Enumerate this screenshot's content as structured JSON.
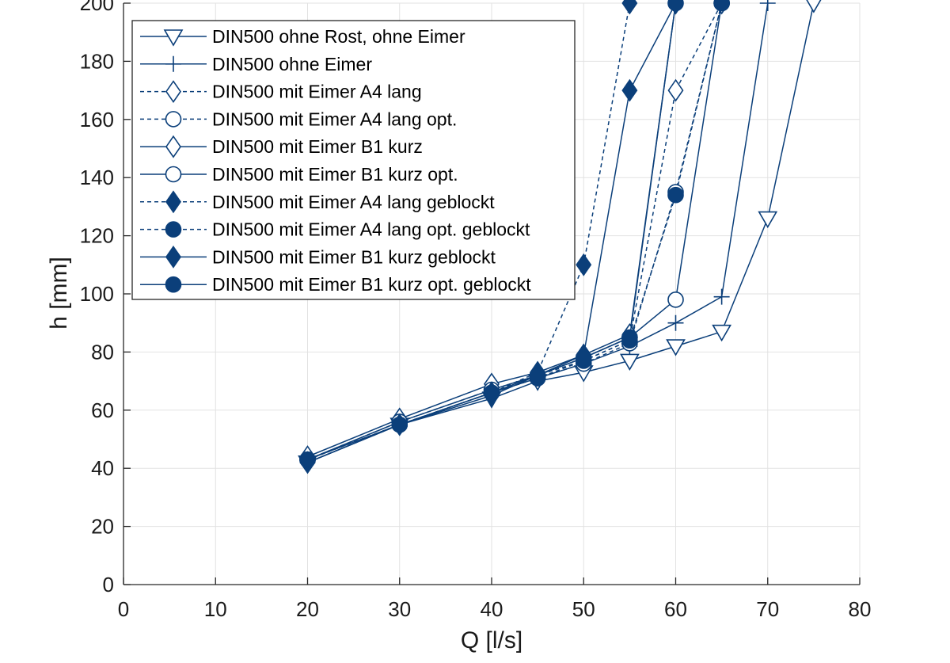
{
  "chart_data": {
    "type": "line",
    "title": "",
    "xlabel": "Q [l/s]",
    "ylabel": "h [mm]",
    "xlim": [
      0,
      80
    ],
    "ylim": [
      0,
      200
    ],
    "xticks": [
      0,
      10,
      20,
      30,
      40,
      50,
      60,
      70,
      80
    ],
    "yticks": [
      0,
      20,
      40,
      60,
      80,
      100,
      120,
      140,
      160,
      180,
      200
    ],
    "grid": true,
    "legend_position": "top-left",
    "color": "#0b3f7a",
    "series": [
      {
        "name": "DIN500 ohne Rost, ohne Eimer",
        "marker": "triangle-down",
        "filled": false,
        "dashed": false,
        "x": [
          20,
          30,
          40,
          45,
          50,
          55,
          60,
          65,
          70,
          75
        ],
        "y": [
          42,
          55,
          64,
          70,
          73,
          77,
          82,
          87,
          126,
          200
        ]
      },
      {
        "name": "DIN500 ohne Eimer",
        "marker": "plus",
        "filled": false,
        "dashed": false,
        "x": [
          20,
          30,
          40,
          45,
          50,
          55,
          60,
          65,
          70
        ],
        "y": [
          42,
          55,
          66,
          71,
          76,
          82,
          90,
          99,
          200
        ]
      },
      {
        "name": "DIN500 mit Eimer A4 lang",
        "marker": "diamond",
        "filled": false,
        "dashed": true,
        "x": [
          20,
          30,
          40,
          45,
          50,
          55,
          60,
          65
        ],
        "y": [
          43,
          56,
          67,
          72,
          77,
          84,
          170,
          200
        ]
      },
      {
        "name": "DIN500 mit Eimer A4 lang opt.",
        "marker": "circle",
        "filled": false,
        "dashed": true,
        "x": [
          20,
          30,
          40,
          45,
          50,
          55,
          60,
          65
        ],
        "y": [
          43,
          55,
          66,
          71,
          76,
          83,
          135,
          200
        ]
      },
      {
        "name": "DIN500 mit Eimer B1 kurz",
        "marker": "diamond",
        "filled": false,
        "dashed": false,
        "x": [
          20,
          30,
          40,
          45,
          50,
          55,
          60
        ],
        "y": [
          44,
          57,
          69,
          73,
          79,
          86,
          200
        ]
      },
      {
        "name": "DIN500 mit Eimer B1 kurz opt.",
        "marker": "circle",
        "filled": false,
        "dashed": false,
        "x": [
          20,
          30,
          40,
          45,
          50,
          55,
          60,
          65
        ],
        "y": [
          43,
          56,
          67,
          72,
          78,
          85,
          98,
          200
        ]
      },
      {
        "name": "DIN500 mit Eimer A4 lang geblockt",
        "marker": "diamond",
        "filled": true,
        "dashed": true,
        "x": [
          20,
          30,
          40,
          45,
          50,
          55
        ],
        "y": [
          42,
          55,
          66,
          73,
          110,
          200
        ]
      },
      {
        "name": "DIN500 mit Eimer A4 lang opt. geblockt",
        "marker": "circle",
        "filled": true,
        "dashed": true,
        "x": [
          20,
          30,
          40,
          45,
          50,
          55,
          60,
          65
        ],
        "y": [
          43,
          55,
          66,
          71,
          77,
          84,
          134,
          200
        ]
      },
      {
        "name": "DIN500 mit Eimer B1 kurz geblockt",
        "marker": "diamond",
        "filled": true,
        "dashed": false,
        "x": [
          20,
          30,
          40,
          45,
          50,
          55,
          60
        ],
        "y": [
          42,
          55,
          65,
          72,
          79,
          170,
          200
        ]
      },
      {
        "name": "DIN500 mit Eimer B1 kurz opt. geblockt",
        "marker": "circle",
        "filled": true,
        "dashed": false,
        "x": [
          20,
          30,
          40,
          45,
          50,
          55,
          60
        ],
        "y": [
          43,
          55,
          66,
          72,
          78,
          85,
          200
        ]
      }
    ]
  }
}
